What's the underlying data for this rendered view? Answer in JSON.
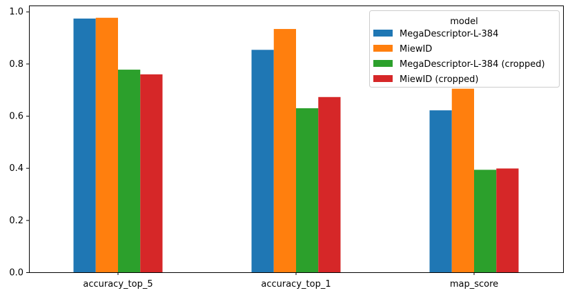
{
  "chart_data": {
    "type": "bar",
    "categories": [
      "accuracy_top_5",
      "accuracy_top_1",
      "map_score"
    ],
    "series": [
      {
        "name": "MegaDescriptor-L-384",
        "color": "#1f77b4",
        "values": [
          0.973,
          0.853,
          0.621
        ]
      },
      {
        "name": "MiewID",
        "color": "#ff7f0e",
        "values": [
          0.976,
          0.933,
          0.704
        ]
      },
      {
        "name": "MegaDescriptor-L-384 (cropped)",
        "color": "#2ca02c",
        "values": [
          0.777,
          0.629,
          0.393
        ]
      },
      {
        "name": "MiewID (cropped)",
        "color": "#d62728",
        "values": [
          0.759,
          0.672,
          0.398
        ]
      }
    ],
    "yticks": [
      "0.0",
      "0.2",
      "0.4",
      "0.6",
      "0.8",
      "1.0"
    ],
    "ylim": [
      0,
      1.023
    ],
    "legend": {
      "title": "model",
      "position": "top-right"
    },
    "grid": false
  }
}
